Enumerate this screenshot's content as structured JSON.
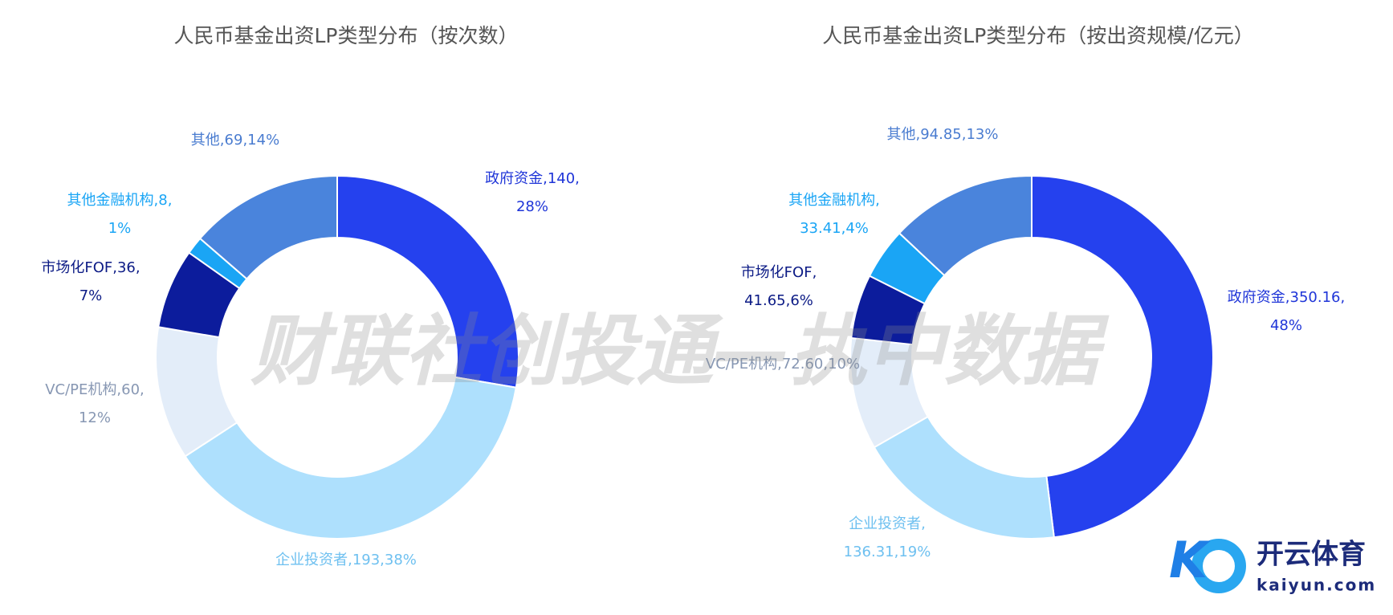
{
  "chart_data": [
    {
      "type": "donut",
      "title": "人民币基金出资LP类型分布（按次数）",
      "categories": [
        "政府资金",
        "企业投资者",
        "VC/PE机构",
        "市场化FOF",
        "其他金融机构",
        "其他"
      ],
      "values": [
        140,
        193,
        60,
        36,
        8,
        69
      ],
      "value_labels": [
        "140",
        "193",
        "60",
        "36",
        "8",
        "69"
      ],
      "percent_labels": [
        "28%",
        "38%",
        "12%",
        "7%",
        "1%",
        "14%"
      ],
      "label_separator": ",",
      "colors": [
        "#2541ee",
        "#aee0fd",
        "#e3edf9",
        "#0c1c9c",
        "#1aa5f5",
        "#4a84dc"
      ],
      "label_colors": [
        "#1f35d8",
        "#6ec0f0",
        "#8797b3",
        "#0b1a85",
        "#1aa5f5",
        "#4a7cd0"
      ]
    },
    {
      "type": "donut",
      "title": "人民币基金出资LP类型分布（按出资规模/亿元）",
      "categories": [
        "政府资金",
        "企业投资者",
        "VC/PE机构",
        "市场化FOF",
        "其他金融机构",
        "其他"
      ],
      "values": [
        350.16,
        136.31,
        72.6,
        41.65,
        33.41,
        94.85
      ],
      "value_labels": [
        "350.16",
        "136.31",
        "72.60",
        "41.65",
        "33.41",
        "94.85"
      ],
      "percent_labels": [
        "48%",
        "19%",
        "10%",
        "6%",
        "4%",
        "13%"
      ],
      "label_separator": ",",
      "colors": [
        "#2541ee",
        "#aee0fd",
        "#e3edf9",
        "#0c1c9c",
        "#1aa5f5",
        "#4a84dc"
      ],
      "label_colors": [
        "#1f35d8",
        "#6ec0f0",
        "#8797b3",
        "#0b1a85",
        "#1aa5f5",
        "#4a7cd0"
      ]
    }
  ],
  "watermark": "财联社创投通—执中数据",
  "logo": {
    "name": "开云体育",
    "domain": "kaiyun.com"
  }
}
